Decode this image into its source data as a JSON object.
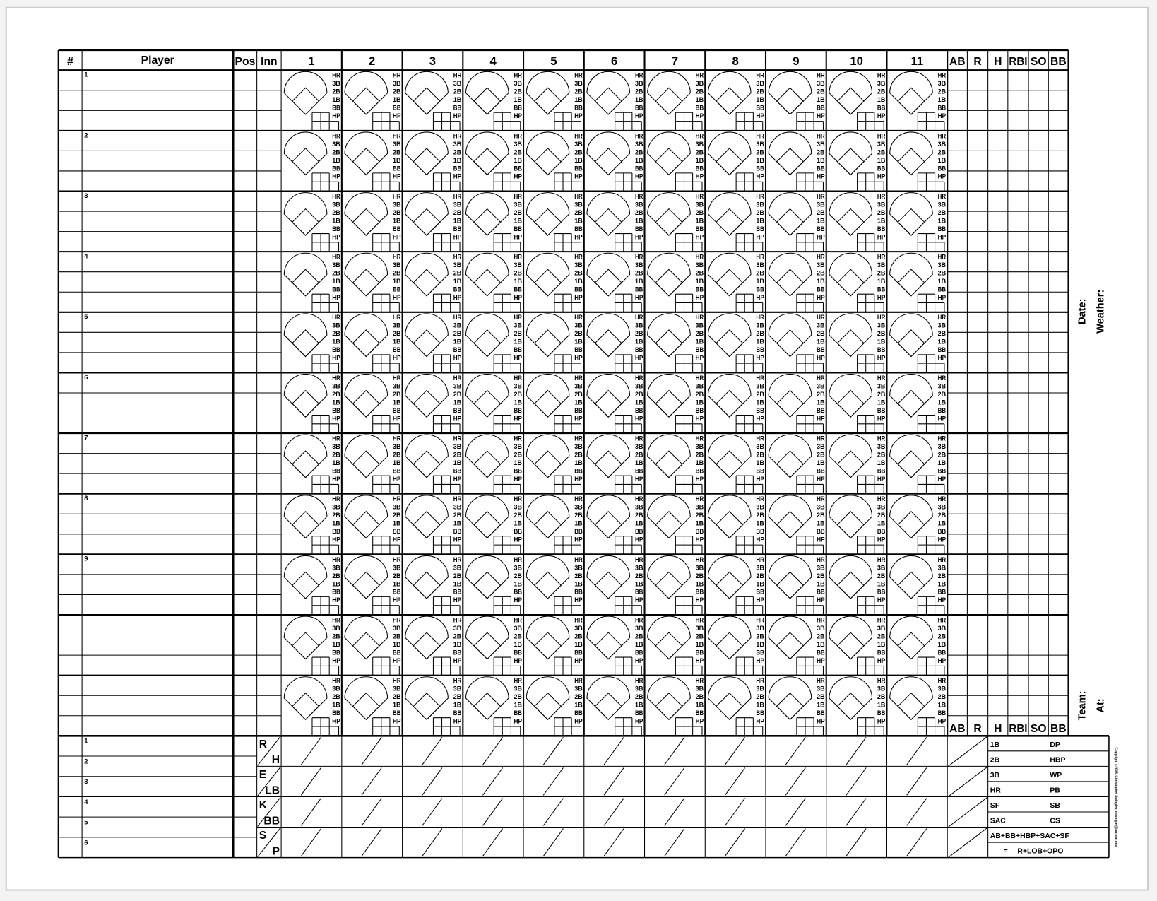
{
  "header": {
    "number": "#",
    "player": "Player",
    "pos": "Pos",
    "inn": "Inn",
    "innings": [
      "1",
      "2",
      "3",
      "4",
      "5",
      "6",
      "7",
      "8",
      "9",
      "10",
      "11"
    ],
    "stats": [
      "AB",
      "R",
      "H",
      "RBI",
      "SO",
      "BB"
    ]
  },
  "lineup": {
    "slot_numbers": [
      "1",
      "2",
      "3",
      "4",
      "5",
      "6",
      "7",
      "8",
      "9",
      "",
      ""
    ]
  },
  "at_bat_results": [
    "HR",
    "3B",
    "2B",
    "1B",
    "BB",
    "HP"
  ],
  "pitchers": {
    "slot_numbers": [
      "1",
      "2",
      "3",
      "4",
      "5",
      "6"
    ]
  },
  "inning_totals": [
    {
      "top": "R",
      "bottom": "H"
    },
    {
      "top": "E",
      "bottom": "LB"
    },
    {
      "top": "K",
      "bottom": "BB"
    },
    {
      "top": "S",
      "bottom": "P"
    }
  ],
  "legend": {
    "rows": [
      [
        "1B",
        "DP"
      ],
      [
        "2B",
        "HBP"
      ],
      [
        "3B",
        "WP"
      ],
      [
        "HR",
        "PB"
      ],
      [
        "SF",
        "SB"
      ],
      [
        "SAC",
        "CS"
      ]
    ],
    "formula_line1": "AB+BB+HBP+SAC+SF",
    "formula_eq": "=",
    "formula_line2": "R+LOB+OPO"
  },
  "game_info": {
    "date_label": "Date:",
    "weather_label": "Weather:",
    "team_label": "Team:",
    "at_label": "At:"
  },
  "copyright": "Copyright ©2005, Christopher Swingley, cswingle@iarc.uaf.edu",
  "colors": {
    "ink": "#000000",
    "paper": "#ffffff",
    "background": "#f3f3f3",
    "paper_border": "#cccccc"
  }
}
